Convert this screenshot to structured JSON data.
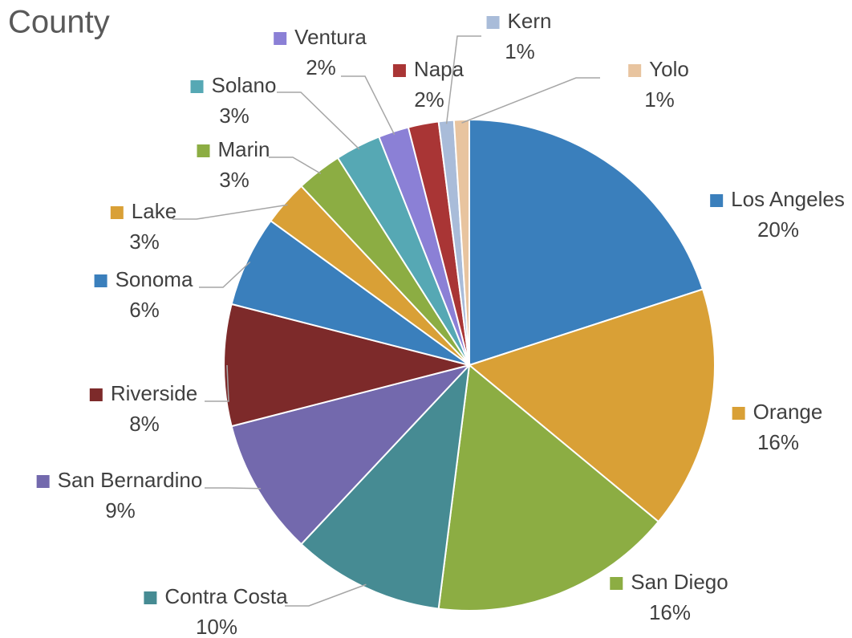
{
  "chart_data": {
    "type": "pie",
    "title": "County",
    "categories": [
      "Los Angeles",
      "Orange",
      "San Diego",
      "Contra Costa",
      "San Bernardino",
      "Riverside",
      "Sonoma",
      "Lake",
      "Marin",
      "Solano",
      "Ventura",
      "Napa",
      "Kern",
      "Yolo"
    ],
    "values": [
      20,
      16,
      16,
      10,
      9,
      8,
      6,
      3,
      3,
      3,
      2,
      2,
      1,
      1
    ],
    "value_labels": [
      "20%",
      "16%",
      "16%",
      "10%",
      "9%",
      "8%",
      "6%",
      "3%",
      "3%",
      "3%",
      "2%",
      "2%",
      "1%",
      "1%"
    ],
    "colors": [
      "#3a7fbc",
      "#d9a036",
      "#8cad43",
      "#468b93",
      "#7369ad",
      "#7d2a2a",
      "#3a7fbc",
      "#d9a036",
      "#8cad43",
      "#56a8b4",
      "#8b80d6",
      "#a93535",
      "#a9bcd9",
      "#e8c49f"
    ]
  }
}
